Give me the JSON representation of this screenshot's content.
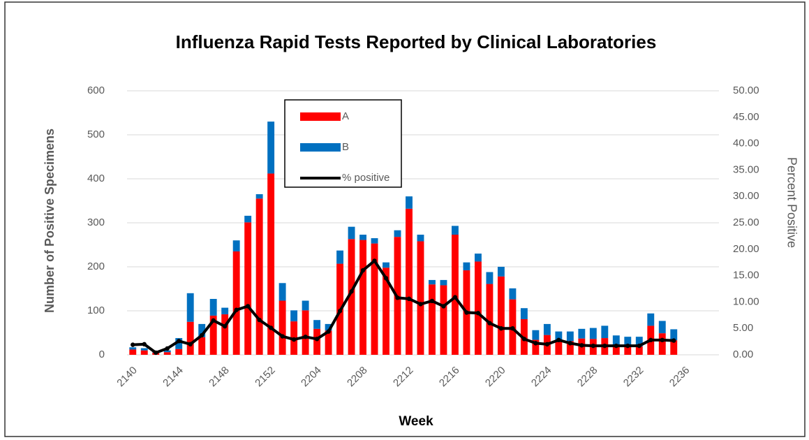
{
  "chart_data": {
    "type": "bar",
    "stacked": true,
    "title": "Influenza Rapid Tests Reported by Clinical Laboratories",
    "x_label": "Week",
    "y_label": "Number of Positive Specimens",
    "y2_label": "Percent Positive",
    "categories": [
      "2140",
      null,
      null,
      null,
      "2144",
      null,
      null,
      null,
      "2148",
      null,
      null,
      null,
      "2152",
      null,
      null,
      null,
      "2204",
      null,
      null,
      null,
      "2208",
      null,
      null,
      null,
      "2212",
      null,
      null,
      null,
      "2216",
      null,
      null,
      null,
      "2220",
      null,
      null,
      null,
      "2224",
      null,
      null,
      null,
      "2228",
      null,
      null,
      null,
      "2232",
      null,
      null,
      null,
      "2236"
    ],
    "series": [
      {
        "name": "A",
        "type": "bar",
        "color": "#ff0000",
        "values": [
          12,
          10,
          5,
          6,
          13,
          75,
          40,
          89,
          92,
          235,
          301,
          355,
          412,
          123,
          76,
          101,
          59,
          55,
          207,
          263,
          261,
          253,
          198,
          268,
          332,
          258,
          160,
          158,
          273,
          192,
          212,
          161,
          178,
          126,
          81,
          34,
          45,
          31,
          31,
          37,
          36,
          38,
          19,
          19,
          19,
          66,
          49,
          33,
          null
        ]
      },
      {
        "name": "B",
        "type": "bar",
        "color": "#0070c0",
        "values": [
          5,
          5,
          3,
          4,
          25,
          65,
          30,
          38,
          15,
          25,
          15,
          10,
          118,
          40,
          25,
          22,
          20,
          15,
          30,
          28,
          12,
          12,
          12,
          15,
          28,
          15,
          10,
          12,
          20,
          18,
          18,
          27,
          22,
          25,
          25,
          22,
          25,
          22,
          22,
          22,
          25,
          28,
          25,
          22,
          22,
          28,
          28,
          25,
          null
        ]
      },
      {
        "name": "% positive",
        "type": "line",
        "axis": "y2",
        "color": "#000000",
        "values": [
          1.9,
          2.0,
          0.4,
          1.2,
          2.6,
          2.0,
          3.7,
          6.5,
          5.4,
          8.5,
          9.2,
          6.6,
          5.1,
          3.5,
          2.9,
          3.4,
          3.0,
          4.4,
          8.3,
          12.0,
          16.0,
          17.8,
          14.5,
          10.8,
          10.6,
          9.6,
          10.2,
          9.2,
          10.9,
          8.0,
          7.9,
          6.0,
          5.0,
          5.0,
          3.0,
          2.2,
          2.0,
          2.8,
          2.2,
          1.8,
          1.7,
          1.7,
          1.7,
          1.7,
          1.7,
          2.8,
          2.8,
          2.7,
          null
        ]
      }
    ],
    "ylim": [
      0,
      600
    ],
    "yticks": [
      0,
      100,
      200,
      300,
      400,
      500,
      600
    ],
    "y2lim": [
      0,
      50
    ],
    "y2ticks": [
      {
        "value": 0,
        "label": "0.00"
      },
      {
        "value": 5,
        "label": "5.00"
      },
      {
        "value": 10,
        "label": "10.00"
      },
      {
        "value": 15,
        "label": "15.00"
      },
      {
        "value": 20,
        "label": "20.00"
      },
      {
        "value": 25,
        "label": "25.00"
      },
      {
        "value": 30,
        "label": "30.00"
      },
      {
        "value": 35,
        "label": "35.00"
      },
      {
        "value": 40,
        "label": "40.00"
      },
      {
        "value": 45,
        "label": "45.00"
      },
      {
        "value": 50,
        "label": "50.00"
      }
    ],
    "grid": true,
    "legend": "top"
  }
}
